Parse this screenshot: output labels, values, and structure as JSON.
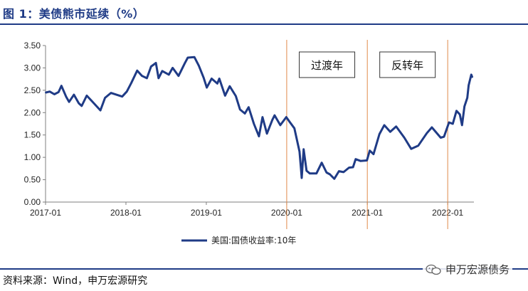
{
  "header": {
    "title": "图 1：美债熊市延续（%）"
  },
  "footer": {
    "source": "资料来源：Wind，申万宏源研究",
    "watermark": "申万宏源债务"
  },
  "chart_data": {
    "type": "line",
    "title": "图 1：美债熊市延续（%）",
    "xlabel": "",
    "ylabel": "",
    "ylim": [
      0,
      3.5
    ],
    "yticks": [
      "0.00",
      "0.50",
      "1.00",
      "1.50",
      "2.00",
      "2.50",
      "3.00",
      "3.50"
    ],
    "xticks": [
      "2017-01",
      "2018-01",
      "2019-01",
      "2020-01",
      "2021-01",
      "2022-01"
    ],
    "grid": false,
    "legend": "bottom-center",
    "series": [
      {
        "name": "美国:国债收益率:10年",
        "color": "#1f3b86",
        "points": [
          [
            "2017-01-03",
            2.45
          ],
          [
            "2017-01-20",
            2.47
          ],
          [
            "2017-02-10",
            2.41
          ],
          [
            "2017-03-01",
            2.46
          ],
          [
            "2017-03-14",
            2.6
          ],
          [
            "2017-04-05",
            2.35
          ],
          [
            "2017-04-18",
            2.24
          ],
          [
            "2017-05-10",
            2.4
          ],
          [
            "2017-06-01",
            2.21
          ],
          [
            "2017-06-14",
            2.15
          ],
          [
            "2017-07-07",
            2.38
          ],
          [
            "2017-08-01",
            2.25
          ],
          [
            "2017-09-07",
            2.05
          ],
          [
            "2017-09-28",
            2.33
          ],
          [
            "2017-10-25",
            2.44
          ],
          [
            "2017-12-15",
            2.36
          ],
          [
            "2018-01-05",
            2.47
          ],
          [
            "2018-01-25",
            2.66
          ],
          [
            "2018-02-21",
            2.94
          ],
          [
            "2018-03-15",
            2.82
          ],
          [
            "2018-04-06",
            2.77
          ],
          [
            "2018-04-25",
            3.03
          ],
          [
            "2018-05-17",
            3.11
          ],
          [
            "2018-05-29",
            2.77
          ],
          [
            "2018-06-15",
            2.93
          ],
          [
            "2018-07-15",
            2.85
          ],
          [
            "2018-08-01",
            3.0
          ],
          [
            "2018-08-28",
            2.82
          ],
          [
            "2018-09-25",
            3.1
          ],
          [
            "2018-10-09",
            3.23
          ],
          [
            "2018-11-08",
            3.24
          ],
          [
            "2018-11-28",
            3.05
          ],
          [
            "2018-12-20",
            2.78
          ],
          [
            "2019-01-03",
            2.56
          ],
          [
            "2019-01-25",
            2.76
          ],
          [
            "2019-02-20",
            2.65
          ],
          [
            "2019-03-01",
            2.76
          ],
          [
            "2019-03-27",
            2.38
          ],
          [
            "2019-04-17",
            2.59
          ],
          [
            "2019-05-15",
            2.37
          ],
          [
            "2019-06-03",
            2.07
          ],
          [
            "2019-06-25",
            1.98
          ],
          [
            "2019-07-12",
            2.12
          ],
          [
            "2019-08-05",
            1.75
          ],
          [
            "2019-08-28",
            1.47
          ],
          [
            "2019-09-13",
            1.9
          ],
          [
            "2019-10-03",
            1.53
          ],
          [
            "2019-10-28",
            1.84
          ],
          [
            "2019-11-07",
            1.94
          ],
          [
            "2019-12-03",
            1.72
          ],
          [
            "2019-12-30",
            1.9
          ],
          [
            "2020-01-15",
            1.79
          ],
          [
            "2020-02-05",
            1.65
          ],
          [
            "2020-02-28",
            1.13
          ],
          [
            "2020-03-06",
            0.74
          ],
          [
            "2020-03-09",
            0.54
          ],
          [
            "2020-03-18",
            1.18
          ],
          [
            "2020-03-31",
            0.7
          ],
          [
            "2020-04-15",
            0.64
          ],
          [
            "2020-05-15",
            0.64
          ],
          [
            "2020-06-08",
            0.88
          ],
          [
            "2020-06-30",
            0.66
          ],
          [
            "2020-07-15",
            0.62
          ],
          [
            "2020-08-04",
            0.52
          ],
          [
            "2020-08-25",
            0.69
          ],
          [
            "2020-09-15",
            0.67
          ],
          [
            "2020-10-10",
            0.77
          ],
          [
            "2020-10-28",
            0.78
          ],
          [
            "2020-11-09",
            0.96
          ],
          [
            "2020-12-01",
            0.92
          ],
          [
            "2020-12-30",
            0.93
          ],
          [
            "2021-01-12",
            1.15
          ],
          [
            "2021-01-29",
            1.07
          ],
          [
            "2021-02-25",
            1.52
          ],
          [
            "2021-03-19",
            1.72
          ],
          [
            "2021-04-15",
            1.57
          ],
          [
            "2021-05-12",
            1.69
          ],
          [
            "2021-06-18",
            1.44
          ],
          [
            "2021-07-19",
            1.19
          ],
          [
            "2021-08-20",
            1.26
          ],
          [
            "2021-09-28",
            1.54
          ],
          [
            "2021-10-21",
            1.67
          ],
          [
            "2021-11-30",
            1.44
          ],
          [
            "2021-12-15",
            1.46
          ],
          [
            "2022-01-07",
            1.78
          ],
          [
            "2022-01-24",
            1.75
          ],
          [
            "2022-02-10",
            2.04
          ],
          [
            "2022-02-25",
            1.96
          ],
          [
            "2022-03-07",
            1.72
          ],
          [
            "2022-03-18",
            2.14
          ],
          [
            "2022-03-31",
            2.33
          ],
          [
            "2022-04-06",
            2.61
          ],
          [
            "2022-04-18",
            2.85
          ],
          [
            "2022-04-22",
            2.8
          ]
        ]
      }
    ],
    "annotations": [
      {
        "label": "过渡年",
        "from": "2020-01-01",
        "to": "2021-01-01"
      },
      {
        "label": "反转年",
        "from": "2021-01-01",
        "to": "2022-01-01"
      }
    ],
    "vertical_lines": [
      "2020-01-01",
      "2021-01-01",
      "2022-01-01"
    ],
    "line_colors": {
      "series": "#1f3b86",
      "vertical": "#e08a4a",
      "axis": "#7f7f7f"
    }
  }
}
